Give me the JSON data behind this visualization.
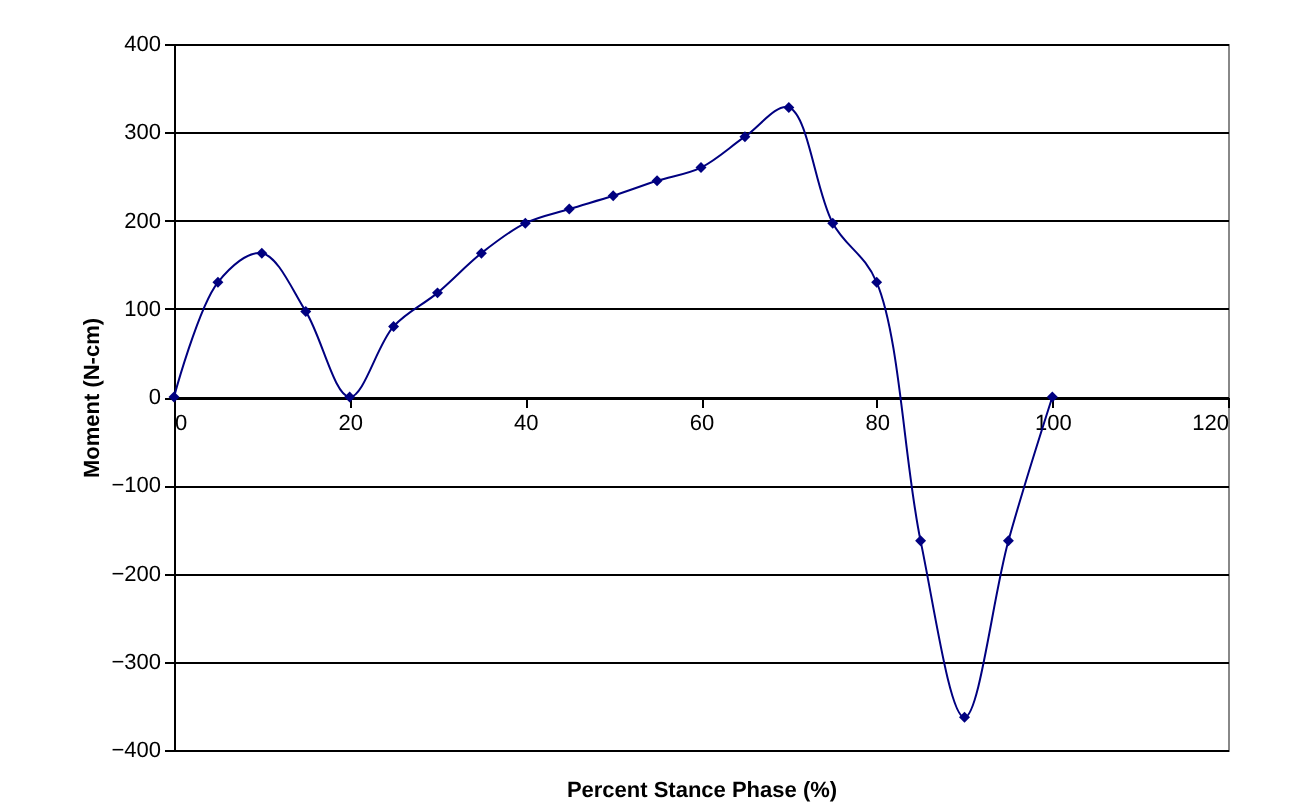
{
  "chart_data": {
    "type": "line",
    "xlabel": "Percent Stance Phase (%)",
    "ylabel": "Moment (N-cm)",
    "x": [
      0,
      5,
      10,
      15,
      20,
      25,
      30,
      35,
      40,
      45,
      50,
      55,
      60,
      65,
      70,
      75,
      80,
      85,
      90,
      95,
      100
    ],
    "series": [
      {
        "color": "#000080",
        "values": [
          0,
          130,
          163,
          97,
          0,
          80,
          118,
          163,
          197,
          213,
          228,
          245,
          260,
          295,
          328,
          197,
          130,
          -163,
          -363,
          -163,
          0
        ]
      }
    ],
    "xlim": [
      0,
      120
    ],
    "xticks": [
      0,
      20,
      40,
      60,
      80,
      100,
      120
    ],
    "ylim": [
      -400,
      400
    ],
    "yticks": [
      -400,
      -300,
      -200,
      -100,
      0,
      100,
      200,
      300,
      400
    ],
    "grid": "y",
    "marker": "diamond",
    "line_style": "solid"
  }
}
